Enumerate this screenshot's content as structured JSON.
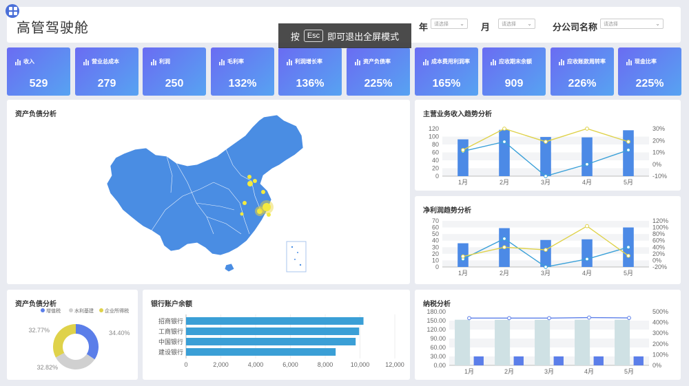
{
  "header": {
    "title": "高管驾驶舱"
  },
  "fullscreen_tip": {
    "prefix": "按",
    "key": "Esc",
    "suffix": "即可退出全屏模式"
  },
  "filters": {
    "year_label": "年",
    "month_label": "月",
    "branch_label": "分公司名称",
    "placeholder": "请选择"
  },
  "kpis": [
    {
      "label": "收入",
      "value": "529"
    },
    {
      "label": "营业总成本",
      "value": "279"
    },
    {
      "label": "利润",
      "value": "250"
    },
    {
      "label": "毛利率",
      "value": "132%"
    },
    {
      "label": "利润增长率",
      "value": "136%"
    },
    {
      "label": "资产负债率",
      "value": "225%"
    },
    {
      "label": "成本费用利润率",
      "value": "165%"
    },
    {
      "label": "应收期末余额",
      "value": "909"
    },
    {
      "label": "应收账款周转率",
      "value": "226%"
    },
    {
      "label": "现金比率",
      "value": "225%"
    }
  ],
  "panels": {
    "map": "资产负债分析",
    "revenue": "主营业务收入趋势分析",
    "profit": "净利润趋势分析",
    "donut": "资产负债分析",
    "bank": "银行账户余额",
    "tax": "纳税分析"
  },
  "colors": {
    "bar": "#4c8ae6",
    "line_blue": "#3aa0d8",
    "line_yellow": "#dfd24a",
    "map": "#4a8de3",
    "kpi_from": "#6a6cf2",
    "kpi_to": "#57a3f2",
    "tax_bar_light": "#cfe1e4",
    "tax_bar": "#5b7ee9"
  },
  "chart_data": [
    {
      "id": "revenue",
      "type": "bar+line",
      "categories": [
        "1月",
        "2月",
        "3月",
        "4月",
        "5月"
      ],
      "y_left": {
        "ticks": [
          0,
          20,
          40,
          60,
          80,
          100,
          120
        ],
        "range": [
          0,
          120
        ]
      },
      "y_right": {
        "ticks": [
          "-10%",
          "0%",
          "10%",
          "20%",
          "30%"
        ],
        "range": [
          -10,
          30
        ]
      },
      "series": [
        {
          "kind": "bar",
          "axis": "left",
          "values": [
            93,
            117,
            99,
            98,
            116
          ]
        },
        {
          "kind": "line",
          "axis": "right",
          "color": "line_blue",
          "values": [
            11,
            19,
            -10,
            0,
            12
          ]
        },
        {
          "kind": "line",
          "axis": "right",
          "color": "line_yellow",
          "values": [
            12,
            30,
            19,
            30,
            19
          ]
        }
      ]
    },
    {
      "id": "profit",
      "type": "bar+line",
      "categories": [
        "1月",
        "2月",
        "3月",
        "4月",
        "5月"
      ],
      "y_left": {
        "ticks": [
          0,
          10,
          20,
          30,
          40,
          50,
          60,
          70
        ],
        "range": [
          0,
          70
        ]
      },
      "y_right": {
        "ticks": [
          "-20%",
          "0%",
          "20%",
          "40%",
          "60%",
          "80%",
          "100%",
          "120%"
        ],
        "range": [
          -20,
          120
        ]
      },
      "series": [
        {
          "kind": "bar",
          "axis": "left",
          "values": [
            36,
            59,
            41,
            42,
            60
          ]
        },
        {
          "kind": "line",
          "axis": "right",
          "color": "line_blue",
          "values": [
            4,
            66,
            -20,
            4,
            40
          ]
        },
        {
          "kind": "line",
          "axis": "right",
          "color": "line_yellow",
          "values": [
            12,
            40,
            32,
            104,
            14
          ]
        }
      ]
    },
    {
      "id": "donut",
      "type": "pie",
      "legend": [
        "增值税",
        "水利基建",
        "企业所得税"
      ],
      "slices": [
        {
          "label": "34.40%",
          "value": 34.4,
          "color": "#5b7ee9"
        },
        {
          "label": "32.82%",
          "value": 32.82,
          "color": "#d0d0d0"
        },
        {
          "label": "32.77%",
          "value": 32.77,
          "color": "#dfd24a"
        }
      ]
    },
    {
      "id": "bank",
      "type": "bar",
      "categories": [
        "招商银行",
        "工商银行",
        "中国银行",
        "建设银行"
      ],
      "values": [
        10200,
        9950,
        9750,
        8600
      ],
      "x_ticks": [
        "0",
        "2,000",
        "4,000",
        "6,000",
        "8,000",
        "10,000",
        "12,000"
      ],
      "xlim": [
        0,
        12000
      ]
    },
    {
      "id": "tax",
      "type": "bar+line",
      "categories": [
        "1月",
        "2月",
        "3月",
        "4月",
        "5月"
      ],
      "y_left": {
        "ticks": [
          "0.00",
          "30.00",
          "60.00",
          "90.00",
          "120.00",
          "150.00",
          "180.00"
        ],
        "range": [
          0,
          180
        ]
      },
      "y_right": {
        "ticks": [
          "0%",
          "100%",
          "200%",
          "300%",
          "400%",
          "500%"
        ],
        "range": [
          0,
          500
        ]
      },
      "series": [
        {
          "kind": "bar",
          "axis": "left",
          "color": "tax_bar_light",
          "values": [
            153,
            153,
            153,
            153,
            153
          ]
        },
        {
          "kind": "bar",
          "axis": "left",
          "color": "tax_bar",
          "values": [
            30,
            30,
            30,
            30,
            30
          ]
        },
        {
          "kind": "line",
          "axis": "right",
          "color": "tax_bar",
          "values": [
            440,
            440,
            440,
            445,
            442
          ]
        }
      ]
    }
  ]
}
